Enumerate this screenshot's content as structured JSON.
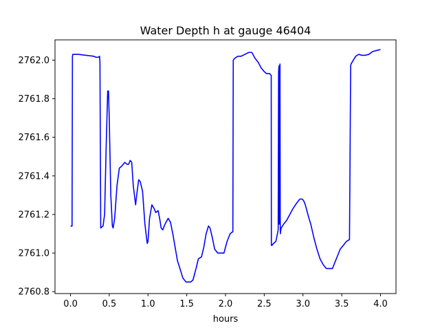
{
  "chart_data": {
    "type": "line",
    "title": "Water Depth h at gauge 46404",
    "xlabel": "hours",
    "ylabel": "",
    "xlim": [
      -0.2,
      4.2
    ],
    "ylim": [
      2760.79,
      2762.105
    ],
    "xticks": [
      0.0,
      0.5,
      1.0,
      1.5,
      2.0,
      2.5,
      3.0,
      3.5,
      4.0
    ],
    "xtick_labels": [
      "0.0",
      "0.5",
      "1.0",
      "1.5",
      "2.0",
      "2.5",
      "3.0",
      "3.5",
      "4.0"
    ],
    "yticks": [
      2760.8,
      2761.0,
      2761.2,
      2761.4,
      2761.6,
      2761.8,
      2762.0
    ],
    "ytick_labels": [
      "2760.8",
      "2761.0",
      "2761.2",
      "2761.4",
      "2761.6",
      "2761.8",
      "2762.0"
    ],
    "grid": false,
    "series": [
      {
        "name": "",
        "color": "#0000ff",
        "x": [
          0.0,
          0.02,
          0.025,
          0.03,
          0.1,
          0.2,
          0.3,
          0.33,
          0.36,
          0.375,
          0.38,
          0.39,
          0.42,
          0.44,
          0.46,
          0.48,
          0.49,
          0.5,
          0.52,
          0.54,
          0.55,
          0.57,
          0.6,
          0.63,
          0.66,
          0.7,
          0.73,
          0.75,
          0.77,
          0.79,
          0.81,
          0.84,
          0.86,
          0.88,
          0.9,
          0.93,
          0.96,
          0.99,
          1.0,
          1.02,
          1.05,
          1.08,
          1.1,
          1.13,
          1.15,
          1.17,
          1.19,
          1.22,
          1.26,
          1.29,
          1.32,
          1.35,
          1.38,
          1.42,
          1.45,
          1.49,
          1.51,
          1.55,
          1.58,
          1.62,
          1.65,
          1.69,
          1.72,
          1.75,
          1.78,
          1.8,
          1.83,
          1.86,
          1.9,
          1.94,
          1.98,
          2.02,
          2.06,
          2.09,
          2.095,
          2.1,
          2.12,
          2.16,
          2.2,
          2.25,
          2.3,
          2.34,
          2.38,
          2.42,
          2.46,
          2.5,
          2.53,
          2.57,
          2.59,
          2.592,
          2.6,
          2.62,
          2.65,
          2.68,
          2.68,
          2.685,
          2.69,
          2.695,
          2.7,
          2.703,
          2.706,
          2.708,
          2.71,
          2.714,
          2.72,
          2.75,
          2.79,
          2.83,
          2.87,
          2.92,
          2.96,
          2.99,
          3.01,
          3.03,
          3.05,
          3.07,
          3.1,
          3.14,
          3.18,
          3.22,
          3.26,
          3.3,
          3.34,
          3.38,
          3.41,
          3.45,
          3.48,
          3.52,
          3.56,
          3.6,
          3.615,
          3.62,
          3.65,
          3.68,
          3.72,
          3.76,
          3.8,
          3.85,
          3.9,
          3.95,
          4.0
        ],
        "y": [
          2761.14,
          2761.14,
          2762.02,
          2762.03,
          2762.03,
          2762.025,
          2762.02,
          2762.015,
          2762.015,
          2762.02,
          2761.99,
          2761.13,
          2761.14,
          2761.2,
          2761.55,
          2761.84,
          2761.84,
          2761.7,
          2761.3,
          2761.14,
          2761.13,
          2761.18,
          2761.35,
          2761.44,
          2761.45,
          2761.47,
          2761.46,
          2761.46,
          2761.48,
          2761.47,
          2761.35,
          2761.25,
          2761.32,
          2761.38,
          2761.37,
          2761.32,
          2761.15,
          2761.05,
          2761.06,
          2761.18,
          2761.25,
          2761.23,
          2761.21,
          2761.22,
          2761.18,
          2761.13,
          2761.12,
          2761.15,
          2761.18,
          2761.16,
          2761.1,
          2761.03,
          2760.96,
          2760.91,
          2760.87,
          2760.85,
          2760.85,
          2760.85,
          2760.86,
          2760.92,
          2760.97,
          2760.98,
          2761.03,
          2761.1,
          2761.14,
          2761.13,
          2761.08,
          2761.02,
          2761.0,
          2761.0,
          2761.0,
          2761.06,
          2761.1,
          2761.11,
          2761.11,
          2762.0,
          2762.01,
          2762.02,
          2762.02,
          2762.03,
          2762.04,
          2762.04,
          2762.01,
          2761.99,
          2761.96,
          2761.94,
          2761.93,
          2761.93,
          2761.92,
          2761.04,
          2761.04,
          2761.05,
          2761.06,
          2761.12,
          2761.14,
          2761.94,
          2761.97,
          2761.15,
          2761.96,
          2761.98,
          2761.18,
          2761.1,
          2761.11,
          2761.12,
          2761.13,
          2761.15,
          2761.17,
          2761.2,
          2761.23,
          2761.26,
          2761.28,
          2761.28,
          2761.27,
          2761.25,
          2761.22,
          2761.19,
          2761.15,
          2761.08,
          2761.02,
          2760.97,
          2760.94,
          2760.92,
          2760.92,
          2760.92,
          2760.95,
          2760.99,
          2761.02,
          2761.04,
          2761.06,
          2761.07,
          2761.97,
          2761.98,
          2762.0,
          2762.02,
          2762.03,
          2762.025,
          2762.025,
          2762.03,
          2762.045,
          2762.05,
          2762.055
        ]
      }
    ]
  }
}
